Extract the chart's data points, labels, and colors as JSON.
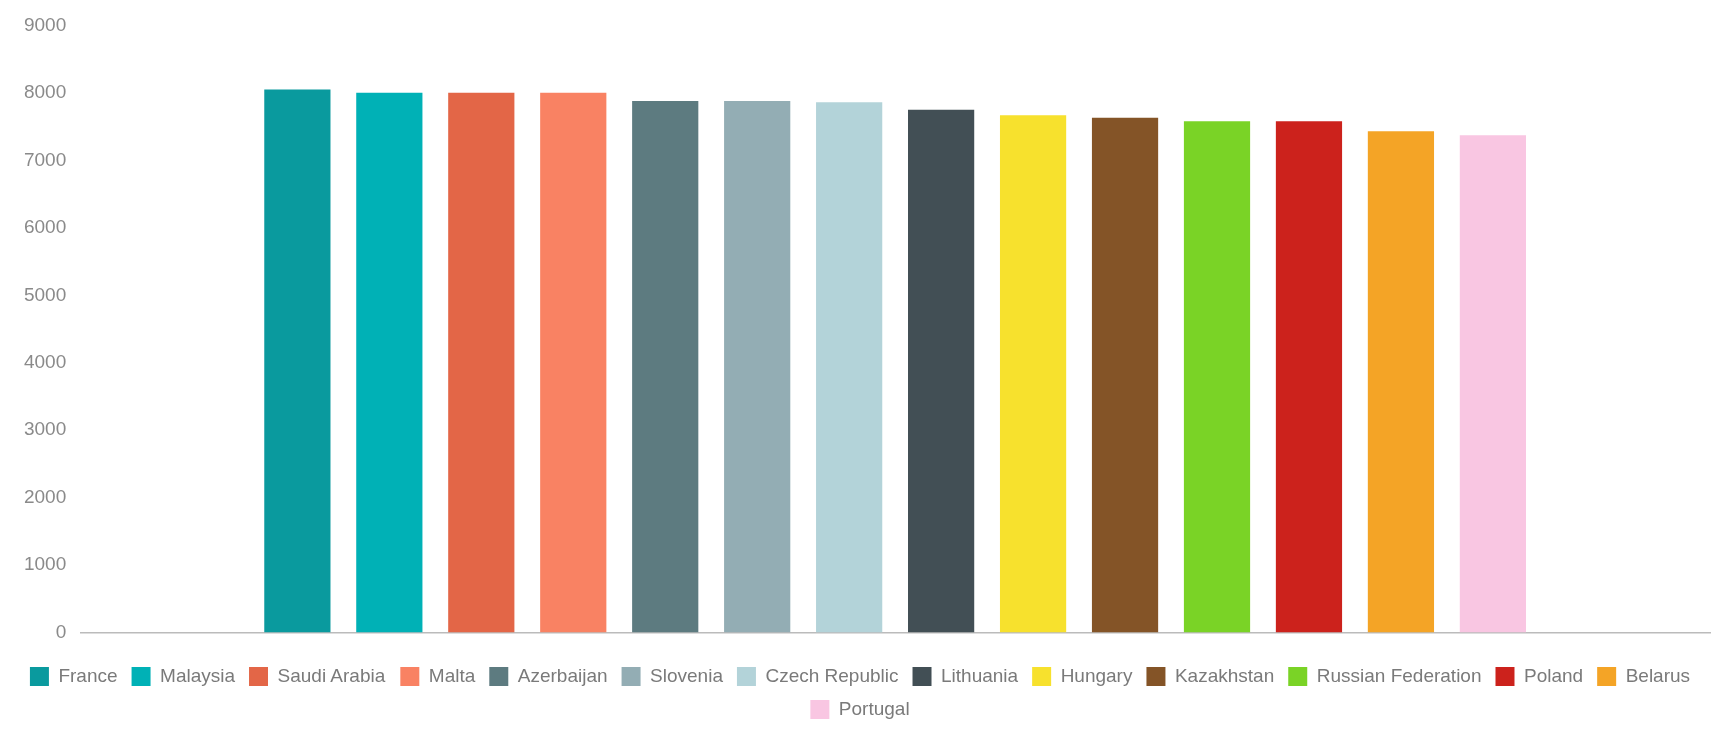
{
  "chart_data": {
    "type": "bar",
    "categories": [
      null
    ],
    "series": [
      {
        "name": "France",
        "color": "#0a9a9e",
        "values": [
          8050
        ]
      },
      {
        "name": "Malaysia",
        "color": "#00b1b6",
        "values": [
          8000
        ]
      },
      {
        "name": "Saudi Arabia",
        "color": "#e36647",
        "values": [
          8000
        ]
      },
      {
        "name": "Malta",
        "color": "#f98263",
        "values": [
          8000
        ]
      },
      {
        "name": "Azerbaijan",
        "color": "#5d7b80",
        "values": [
          7880
        ]
      },
      {
        "name": "Slovenia",
        "color": "#93adb4",
        "values": [
          7880
        ]
      },
      {
        "name": "Czech Republic",
        "color": "#b3d3d9",
        "values": [
          7860
        ]
      },
      {
        "name": "Lithuania",
        "color": "#424f55",
        "values": [
          7750
        ]
      },
      {
        "name": "Hungary",
        "color": "#f7e12d",
        "values": [
          7670
        ]
      },
      {
        "name": "Kazakhstan",
        "color": "#845427",
        "values": [
          7630
        ]
      },
      {
        "name": "Russian Federation",
        "color": "#7ad326",
        "values": [
          7580
        ]
      },
      {
        "name": "Poland",
        "color": "#cc221c",
        "values": [
          7580
        ]
      },
      {
        "name": "Belarus",
        "color": "#f4a426",
        "values": [
          7430
        ]
      },
      {
        "name": "Portugal",
        "color": "#f9c6e2",
        "values": [
          7370
        ]
      }
    ],
    "ylim": [
      0,
      9000
    ],
    "yticks": [
      0,
      1000,
      2000,
      3000,
      4000,
      5000,
      6000,
      7000,
      8000,
      9000
    ],
    "grid": false,
    "legend": "bottom"
  }
}
